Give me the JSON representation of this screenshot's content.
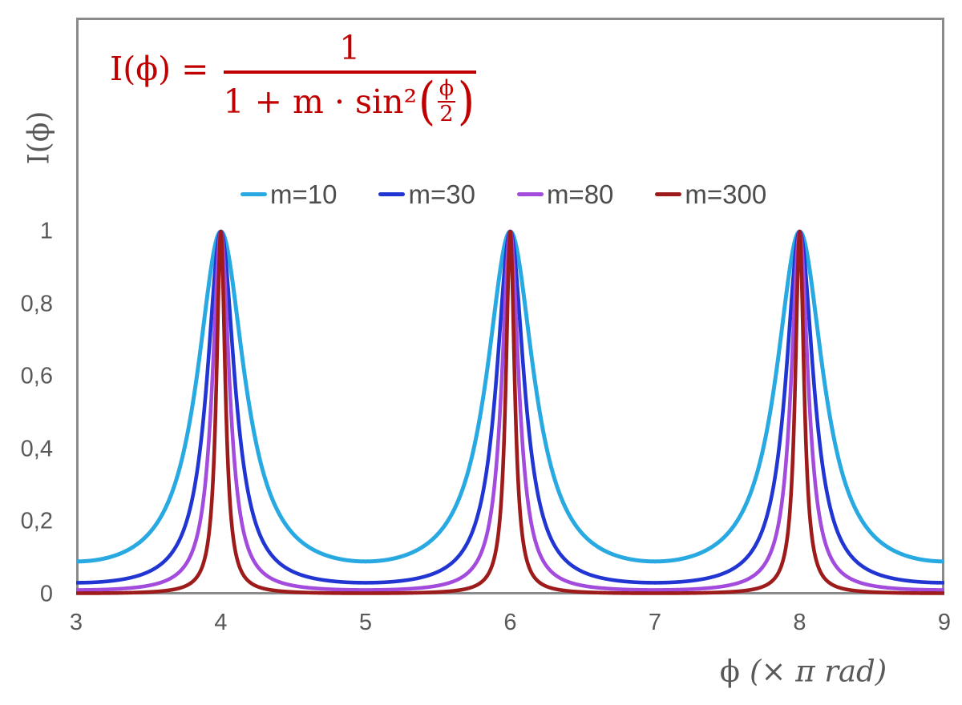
{
  "formula": {
    "lhs": "I(ϕ) =",
    "numerator": "1",
    "den_prefix": "1 + m · sin²",
    "paren_open": "(",
    "inner_numerator": "ϕ",
    "inner_denominator": "2",
    "paren_close": ")",
    "color": "#c00000"
  },
  "legend": {
    "items": [
      {
        "label": "m=10",
        "color": "#29a9e1"
      },
      {
        "label": "m=30",
        "color": "#2135d2"
      },
      {
        "label": "m=80",
        "color": "#a34bdc"
      },
      {
        "label": "m=300",
        "color": "#9e1b1b"
      }
    ]
  },
  "axes": {
    "y_label": "I(ϕ)",
    "x_label_symbol": "ϕ",
    "x_label_unit": "(× π rad)",
    "frame_color": "#8a8a8a",
    "tick_color": "#595959"
  },
  "chart_data": {
    "type": "line",
    "title": "",
    "xlabel": "ϕ (× π rad)",
    "ylabel": "I(ϕ)",
    "function": "I(phi) = 1 / (1 + m * sin^2(phi/2)), x axis in units of pi rad",
    "x_range": [
      3,
      9
    ],
    "y_range": [
      0,
      1
    ],
    "peaks_at_x": [
      4,
      6,
      8
    ],
    "peak_value": 1,
    "grid": false,
    "legend_position": "top-center",
    "x_ticks": [
      {
        "label": "3",
        "value": 3
      },
      {
        "label": "4",
        "value": 4
      },
      {
        "label": "5",
        "value": 5
      },
      {
        "label": "6",
        "value": 6
      },
      {
        "label": "7",
        "value": 7
      },
      {
        "label": "8",
        "value": 8
      },
      {
        "label": "9",
        "value": 9
      }
    ],
    "y_ticks": [
      {
        "label": "1",
        "value": 1
      },
      {
        "label": "0,8",
        "value": 0.8
      },
      {
        "label": "0,6",
        "value": 0.6
      },
      {
        "label": "0,4",
        "value": 0.4
      },
      {
        "label": "0,2",
        "value": 0.2
      },
      {
        "label": "0",
        "value": 0
      }
    ],
    "series": [
      {
        "name": "m=10",
        "m": 10,
        "color": "#29a9e1",
        "stroke_width": 5,
        "value_at_half_period": 0.0909
      },
      {
        "name": "m=30",
        "m": 30,
        "color": "#2135d2",
        "stroke_width": 4.6,
        "value_at_half_period": 0.0323
      },
      {
        "name": "m=80",
        "m": 80,
        "color": "#a34bdc",
        "stroke_width": 4.6,
        "value_at_half_period": 0.0123
      },
      {
        "name": "m=300",
        "m": 300,
        "color": "#9e1b1b",
        "stroke_width": 4.6,
        "value_at_half_period": 0.0033
      }
    ]
  }
}
